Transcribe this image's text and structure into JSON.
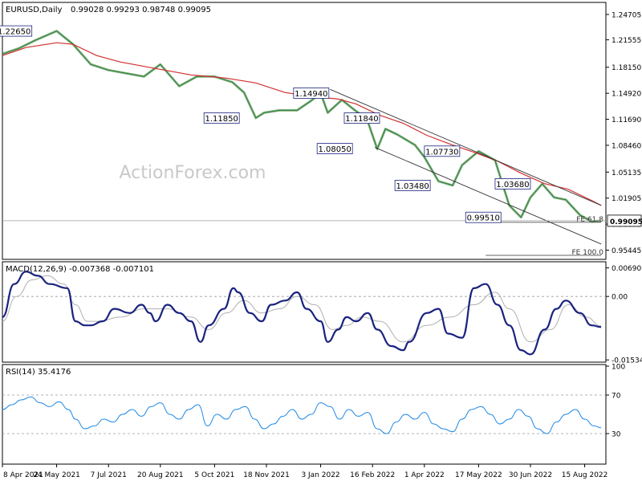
{
  "header": {
    "symbol": "EURUSD,Daily",
    "ohlc": "0.99028 0.99293 0.98748 0.99095"
  },
  "watermark": "ActionForex.com",
  "colors": {
    "price": "#2e7d32",
    "ma": "#d32f2f",
    "channel": "#333333",
    "macd_main": "#1a237e",
    "macd_signal": "#b0b0b0",
    "rsi": "#1e88e5",
    "label_border": "#1a237e",
    "grid": "#9e9e9e"
  },
  "chart_data": [
    {
      "type": "line",
      "panel": "price",
      "ylim": [
        0.945,
        1.26
      ],
      "x_tick_labels": [
        "8 Apr 2021",
        "24 May 2021",
        "7 Jul 2021",
        "20 Aug 2021",
        "5 Oct 2021",
        "18 Nov 2021",
        "3 Jan 2022",
        "16 Feb 2022",
        "1 Apr 2022",
        "17 May 2022",
        "30 Jun 2022",
        "15 Aug 2022"
      ],
      "x_ticks_day": [
        0,
        46,
        90,
        134,
        180,
        224,
        270,
        314,
        358,
        404,
        448,
        494
      ],
      "y_ticks": [
        1.24705,
        1.21555,
        1.1815,
        1.1492,
        1.1169,
        1.0846,
        1.05135,
        1.01905,
        0.98675,
        0.95445
      ],
      "y_tick_labels": [
        "1.24705",
        "1.21555",
        "1.18150",
        "1.14920",
        "1.11690",
        "1.08460",
        "1.05135",
        "1.01905",
        "0.98675",
        "0.95445"
      ],
      "last_price": 0.99095,
      "last_price_label": "0.99095",
      "series": [
        {
          "role": "price",
          "x": [
            0,
            14,
            28,
            46,
            60,
            75,
            90,
            105,
            120,
            134,
            150,
            165,
            180,
            195,
            205,
            215,
            222,
            235,
            250,
            262,
            270,
            276,
            288,
            300,
            309,
            318,
            325,
            335,
            350,
            358,
            370,
            382,
            390,
            404,
            418,
            430,
            440,
            448,
            458,
            468,
            478,
            490,
            500,
            508
          ],
          "y": [
            1.198,
            1.205,
            1.215,
            1.2265,
            1.21,
            1.185,
            1.178,
            1.174,
            1.17,
            1.185,
            1.158,
            1.17,
            1.17,
            1.163,
            1.15,
            1.1185,
            1.125,
            1.128,
            1.128,
            1.14,
            1.1494,
            1.125,
            1.141,
            1.127,
            1.1184,
            1.08,
            1.105,
            1.098,
            1.085,
            1.07,
            1.04,
            1.0348,
            1.06,
            1.0773,
            1.066,
            1.01,
            0.9951,
            1.02,
            1.0368,
            1.02,
            1.017,
            0.998,
            0.99,
            0.991
          ]
        },
        {
          "role": "ma",
          "x": [
            0,
            20,
            46,
            60,
            80,
            100,
            130,
            160,
            190,
            215,
            240,
            265,
            285,
            300,
            320,
            340,
            360,
            380,
            400,
            420,
            440,
            460,
            480,
            500,
            508
          ],
          "y": [
            1.196,
            1.206,
            1.212,
            1.21,
            1.196,
            1.188,
            1.18,
            1.172,
            1.168,
            1.162,
            1.15,
            1.145,
            1.142,
            1.136,
            1.122,
            1.112,
            1.097,
            1.086,
            1.076,
            1.065,
            1.05,
            1.037,
            1.03,
            1.016,
            1.01
          ]
        }
      ],
      "levels": [
        {
          "label": "1.22650",
          "day": 10,
          "price": 1.2265
        },
        {
          "label": "1.14940",
          "day": 262,
          "price": 1.1494
        },
        {
          "label": "1.11850",
          "day": 186,
          "price": 1.1185
        },
        {
          "label": "1.11840",
          "day": 305,
          "price": 1.1184
        },
        {
          "label": "1.08050",
          "day": 282,
          "price": 1.0805
        },
        {
          "label": "1.07730",
          "day": 373,
          "price": 1.0773
        },
        {
          "label": "1.03480",
          "day": 348,
          "price": 1.0348
        },
        {
          "label": "1.03680",
          "day": 433,
          "price": 1.0368
        },
        {
          "label": "0.99510",
          "day": 408,
          "price": 0.9951
        }
      ],
      "channel_lines": [
        {
          "x": [
            278,
            508
          ],
          "y": [
            1.154,
            1.01
          ]
        },
        {
          "x": [
            316,
            508
          ],
          "y": [
            1.082,
            0.962
          ]
        }
      ],
      "fib_lines": [
        {
          "label": "FE 61.8",
          "price": 0.989,
          "x": [
            410,
            508
          ]
        },
        {
          "label": "FE 100.0",
          "price": 0.948,
          "x": [
            410,
            508
          ]
        }
      ]
    },
    {
      "type": "line",
      "panel": "macd",
      "title": "MACD(12,26,9) -0.007368 -0.007101",
      "ylim": [
        -0.0155,
        0.008
      ],
      "y_ticks": [
        0.006906,
        0.0,
        -0.015348
      ],
      "y_tick_labels": [
        "0.006906",
        "0.00",
        "-0.015348"
      ],
      "series": [
        {
          "role": "macd_main",
          "x": [
            0,
            10,
            20,
            30,
            40,
            55,
            62,
            70,
            75,
            85,
            95,
            108,
            118,
            125,
            130,
            140,
            150,
            160,
            168,
            175,
            188,
            196,
            200,
            210,
            220,
            228,
            240,
            250,
            258,
            270,
            276,
            285,
            292,
            300,
            310,
            318,
            330,
            340,
            345,
            360,
            370,
            378,
            390,
            400,
            410,
            420,
            430,
            440,
            448,
            460,
            470,
            478,
            490,
            500,
            508
          ],
          "y": [
            -0.005,
            0.003,
            0.006,
            0.005,
            0.003,
            0.002,
            -0.006,
            -0.007,
            -0.007,
            -0.006,
            -0.003,
            -0.004,
            -0.002,
            -0.004,
            -0.006,
            -0.002,
            -0.004,
            -0.006,
            -0.011,
            -0.007,
            -0.003,
            0.002,
            0.001,
            -0.004,
            -0.006,
            -0.002,
            -0.001,
            0.001,
            -0.003,
            -0.006,
            -0.011,
            -0.008,
            -0.005,
            -0.006,
            -0.004,
            -0.008,
            -0.012,
            -0.013,
            -0.011,
            -0.004,
            -0.003,
            -0.009,
            -0.01,
            0.002,
            0.003,
            -0.002,
            -0.007,
            -0.013,
            -0.014,
            -0.008,
            -0.003,
            -0.001,
            -0.004,
            -0.007,
            -0.0074
          ]
        },
        {
          "role": "macd_signal",
          "x": [
            0,
            12,
            25,
            38,
            52,
            62,
            72,
            82,
            100,
            120,
            140,
            160,
            175,
            190,
            205,
            220,
            235,
            250,
            265,
            280,
            292,
            305,
            320,
            340,
            360,
            380,
            400,
            418,
            430,
            448,
            465,
            480,
            495,
            508
          ],
          "y": [
            -0.006,
            0.0,
            0.004,
            0.005,
            0.003,
            -0.002,
            -0.006,
            -0.006,
            -0.005,
            -0.003,
            -0.003,
            -0.005,
            -0.008,
            -0.004,
            -0.001,
            -0.004,
            -0.003,
            0.0,
            -0.002,
            -0.008,
            -0.007,
            -0.005,
            -0.006,
            -0.011,
            -0.007,
            -0.005,
            -0.002,
            0.001,
            -0.003,
            -0.011,
            -0.008,
            -0.002,
            -0.005,
            -0.0071
          ]
        }
      ]
    },
    {
      "type": "line",
      "panel": "rsi",
      "title": "RSI(14) 35.4176",
      "ylim": [
        0,
        100
      ],
      "y_ticks": [
        100,
        70,
        30
      ],
      "y_tick_labels": [
        "100",
        "70",
        "30"
      ],
      "series": [
        {
          "role": "rsi",
          "x": [
            0,
            8,
            16,
            24,
            32,
            40,
            48,
            56,
            62,
            70,
            78,
            86,
            94,
            102,
            110,
            118,
            126,
            134,
            142,
            150,
            158,
            166,
            174,
            182,
            190,
            198,
            206,
            214,
            222,
            230,
            238,
            246,
            254,
            262,
            270,
            278,
            286,
            294,
            302,
            310,
            318,
            326,
            334,
            342,
            350,
            358,
            366,
            374,
            382,
            390,
            398,
            406,
            414,
            422,
            430,
            438,
            446,
            454,
            462,
            470,
            478,
            486,
            494,
            502,
            508
          ],
          "y": [
            55,
            60,
            65,
            68,
            62,
            58,
            63,
            55,
            45,
            35,
            38,
            45,
            42,
            50,
            55,
            48,
            58,
            62,
            50,
            45,
            55,
            60,
            38,
            50,
            45,
            55,
            58,
            45,
            35,
            40,
            48,
            55,
            45,
            50,
            62,
            58,
            45,
            55,
            48,
            52,
            35,
            30,
            42,
            50,
            45,
            52,
            40,
            35,
            32,
            45,
            55,
            58,
            50,
            40,
            45,
            55,
            48,
            35,
            30,
            42,
            50,
            55,
            45,
            38,
            36
          ]
        }
      ]
    }
  ]
}
